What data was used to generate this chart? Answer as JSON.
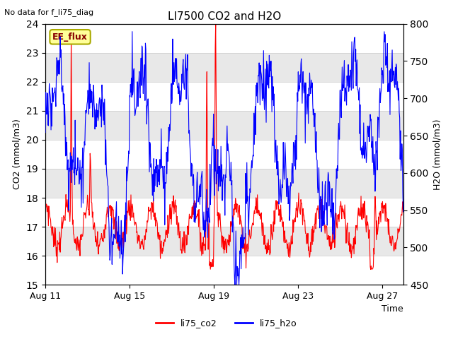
{
  "title": "LI7500 CO2 and H2O",
  "top_left_text": "No data for f_li75_diag",
  "xlabel": "Time",
  "ylabel_left": "CO2 (mmol/m3)",
  "ylabel_right": "H2O (mmol/m3)",
  "ylim_left": [
    15.0,
    24.0
  ],
  "ylim_right": [
    450,
    800
  ],
  "x_tick_labels": [
    "Aug 11",
    "Aug 15",
    "Aug 19",
    "Aug 23",
    "Aug 27"
  ],
  "x_tick_positions": [
    0,
    4,
    8,
    12,
    16
  ],
  "annotation_text": "EE_flux",
  "annotation_box_color": "#FFFF99",
  "annotation_box_edge": "#AAAA00",
  "annotation_text_color": "#880000",
  "line_color_co2": "red",
  "line_color_h2o": "blue",
  "band_color": "#E8E8E8",
  "n_days": 17
}
